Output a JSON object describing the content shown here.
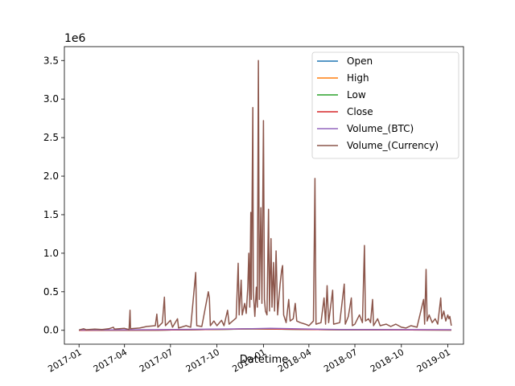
{
  "chart_data": {
    "type": "line",
    "xlabel": "Datetime",
    "ylabel": "",
    "y_offset_text": "1e6",
    "xlim": [
      "2016-12-03",
      "2019-02-01"
    ],
    "ylim": [
      -180000,
      3680000
    ],
    "x_ticks": [
      {
        "date": "2017-01-01",
        "label": "2017-01"
      },
      {
        "date": "2017-04-01",
        "label": "2017-04"
      },
      {
        "date": "2017-07-01",
        "label": "2017-07"
      },
      {
        "date": "2017-10-01",
        "label": "2017-10"
      },
      {
        "date": "2018-01-01",
        "label": "2018-01"
      },
      {
        "date": "2018-04-01",
        "label": "2018-04"
      },
      {
        "date": "2018-07-01",
        "label": "2018-07"
      },
      {
        "date": "2018-10-01",
        "label": "2018-10"
      },
      {
        "date": "2019-01-01",
        "label": "2019-01"
      }
    ],
    "y_ticks": [
      {
        "value": 0,
        "label": "0.0"
      },
      {
        "value": 500000,
        "label": "0.5"
      },
      {
        "value": 1000000,
        "label": "1.0"
      },
      {
        "value": 1500000,
        "label": "1.5"
      },
      {
        "value": 2000000,
        "label": "2.0"
      },
      {
        "value": 2500000,
        "label": "2.5"
      },
      {
        "value": 3000000,
        "label": "3.0"
      },
      {
        "value": 3500000,
        "label": "3.5"
      }
    ],
    "grid": false,
    "legend_position": "top-right",
    "series": [
      {
        "name": "Open",
        "color": "#1f77b4",
        "points": [
          [
            "2017-01-01",
            1000
          ],
          [
            "2017-06-01",
            2500
          ],
          [
            "2017-12-17",
            19000
          ],
          [
            "2018-06-01",
            7500
          ],
          [
            "2019-01-08",
            4000
          ]
        ]
      },
      {
        "name": "High",
        "color": "#ff7f0e",
        "points": [
          [
            "2017-01-01",
            1000
          ],
          [
            "2017-06-01",
            2500
          ],
          [
            "2017-12-17",
            19500
          ],
          [
            "2018-06-01",
            7600
          ],
          [
            "2019-01-08",
            4100
          ]
        ]
      },
      {
        "name": "Low",
        "color": "#2ca02c",
        "points": [
          [
            "2017-01-01",
            950
          ],
          [
            "2017-06-01",
            2400
          ],
          [
            "2017-12-17",
            18500
          ],
          [
            "2018-06-01",
            7400
          ],
          [
            "2019-01-08",
            3900
          ]
        ]
      },
      {
        "name": "Close",
        "color": "#d62728",
        "points": [
          [
            "2017-01-01",
            1000
          ],
          [
            "2017-06-01",
            2500
          ],
          [
            "2017-12-17",
            19000
          ],
          [
            "2018-06-01",
            7500
          ],
          [
            "2019-01-08",
            4000
          ]
        ]
      },
      {
        "name": "Volume_(BTC)",
        "color": "#9467bd",
        "points": [
          [
            "2017-01-01",
            5000
          ],
          [
            "2017-06-01",
            8000
          ],
          [
            "2017-12-10",
            20000
          ],
          [
            "2018-01-15",
            25000
          ],
          [
            "2018-06-01",
            10000
          ],
          [
            "2019-01-08",
            8000
          ]
        ]
      },
      {
        "name": "Volume_(Currency)",
        "color": "#8c564b",
        "points": [
          [
            "2017-01-01",
            5000
          ],
          [
            "2017-01-10",
            20000
          ],
          [
            "2017-01-15",
            8000
          ],
          [
            "2017-02-01",
            15000
          ],
          [
            "2017-02-15",
            10000
          ],
          [
            "2017-03-01",
            20000
          ],
          [
            "2017-03-10",
            40000
          ],
          [
            "2017-03-12",
            15000
          ],
          [
            "2017-04-01",
            25000
          ],
          [
            "2017-04-10",
            10000
          ],
          [
            "2017-04-12",
            260000
          ],
          [
            "2017-04-13",
            20000
          ],
          [
            "2017-05-01",
            30000
          ],
          [
            "2017-05-15",
            50000
          ],
          [
            "2017-06-01",
            60000
          ],
          [
            "2017-06-04",
            210000
          ],
          [
            "2017-06-06",
            40000
          ],
          [
            "2017-06-15",
            100000
          ],
          [
            "2017-06-19",
            430000
          ],
          [
            "2017-06-21",
            60000
          ],
          [
            "2017-07-01",
            130000
          ],
          [
            "2017-07-05",
            40000
          ],
          [
            "2017-07-15",
            150000
          ],
          [
            "2017-07-17",
            30000
          ],
          [
            "2017-08-01",
            60000
          ],
          [
            "2017-08-10",
            40000
          ],
          [
            "2017-08-20",
            750000
          ],
          [
            "2017-08-22",
            60000
          ],
          [
            "2017-09-01",
            50000
          ],
          [
            "2017-09-14",
            500000
          ],
          [
            "2017-09-16",
            420000
          ],
          [
            "2017-09-18",
            60000
          ],
          [
            "2017-09-25",
            120000
          ],
          [
            "2017-10-01",
            60000
          ],
          [
            "2017-10-10",
            130000
          ],
          [
            "2017-10-15",
            60000
          ],
          [
            "2017-10-22",
            260000
          ],
          [
            "2017-10-25",
            80000
          ],
          [
            "2017-11-01",
            120000
          ],
          [
            "2017-11-08",
            160000
          ],
          [
            "2017-11-12",
            870000
          ],
          [
            "2017-11-14",
            200000
          ],
          [
            "2017-11-18",
            650000
          ],
          [
            "2017-11-20",
            200000
          ],
          [
            "2017-11-25",
            350000
          ],
          [
            "2017-11-28",
            220000
          ],
          [
            "2017-12-01",
            550000
          ],
          [
            "2017-12-03",
            1000000
          ],
          [
            "2017-12-05",
            300000
          ],
          [
            "2017-12-07",
            1530000
          ],
          [
            "2017-12-08",
            400000
          ],
          [
            "2017-12-11",
            2890000
          ],
          [
            "2017-12-12",
            500000
          ],
          [
            "2017-12-15",
            180000
          ],
          [
            "2017-12-18",
            560000
          ],
          [
            "2017-12-20",
            300000
          ],
          [
            "2017-12-22",
            3500000
          ],
          [
            "2017-12-24",
            400000
          ],
          [
            "2017-12-27",
            1590000
          ],
          [
            "2017-12-29",
            350000
          ],
          [
            "2018-01-01",
            2720000
          ],
          [
            "2018-01-03",
            400000
          ],
          [
            "2018-01-05",
            250000
          ],
          [
            "2018-01-08",
            200000
          ],
          [
            "2018-01-11",
            1570000
          ],
          [
            "2018-01-13",
            250000
          ],
          [
            "2018-01-16",
            1190000
          ],
          [
            "2018-01-18",
            300000
          ],
          [
            "2018-01-21",
            880000
          ],
          [
            "2018-01-23",
            250000
          ],
          [
            "2018-01-26",
            1030000
          ],
          [
            "2018-01-29",
            200000
          ],
          [
            "2018-02-03",
            600000
          ],
          [
            "2018-02-06",
            780000
          ],
          [
            "2018-02-08",
            840000
          ],
          [
            "2018-02-10",
            200000
          ],
          [
            "2018-02-15",
            100000
          ],
          [
            "2018-02-20",
            400000
          ],
          [
            "2018-02-23",
            120000
          ],
          [
            "2018-03-01",
            150000
          ],
          [
            "2018-03-05",
            350000
          ],
          [
            "2018-03-08",
            120000
          ],
          [
            "2018-03-15",
            100000
          ],
          [
            "2018-03-25",
            80000
          ],
          [
            "2018-04-01",
            60000
          ],
          [
            "2018-04-10",
            120000
          ],
          [
            "2018-04-13",
            1970000
          ],
          [
            "2018-04-15",
            80000
          ],
          [
            "2018-04-25",
            100000
          ],
          [
            "2018-05-01",
            420000
          ],
          [
            "2018-05-04",
            80000
          ],
          [
            "2018-05-07",
            580000
          ],
          [
            "2018-05-10",
            100000
          ],
          [
            "2018-05-18",
            520000
          ],
          [
            "2018-05-20",
            80000
          ],
          [
            "2018-06-01",
            100000
          ],
          [
            "2018-06-10",
            600000
          ],
          [
            "2018-06-12",
            80000
          ],
          [
            "2018-06-18",
            180000
          ],
          [
            "2018-06-24",
            420000
          ],
          [
            "2018-06-26",
            60000
          ],
          [
            "2018-07-01",
            80000
          ],
          [
            "2018-07-10",
            200000
          ],
          [
            "2018-07-16",
            100000
          ],
          [
            "2018-07-20",
            1100000
          ],
          [
            "2018-07-22",
            120000
          ],
          [
            "2018-07-28",
            150000
          ],
          [
            "2018-08-01",
            100000
          ],
          [
            "2018-08-05",
            400000
          ],
          [
            "2018-08-07",
            60000
          ],
          [
            "2018-08-15",
            150000
          ],
          [
            "2018-08-20",
            60000
          ],
          [
            "2018-09-01",
            80000
          ],
          [
            "2018-09-10",
            50000
          ],
          [
            "2018-09-20",
            80000
          ],
          [
            "2018-10-01",
            40000
          ],
          [
            "2018-10-10",
            30000
          ],
          [
            "2018-10-20",
            60000
          ],
          [
            "2018-11-01",
            40000
          ],
          [
            "2018-11-14",
            400000
          ],
          [
            "2018-11-16",
            80000
          ],
          [
            "2018-11-19",
            790000
          ],
          [
            "2018-11-21",
            120000
          ],
          [
            "2018-11-25",
            200000
          ],
          [
            "2018-12-01",
            100000
          ],
          [
            "2018-12-07",
            150000
          ],
          [
            "2018-12-12",
            80000
          ],
          [
            "2018-12-18",
            420000
          ],
          [
            "2018-12-20",
            150000
          ],
          [
            "2018-12-24",
            250000
          ],
          [
            "2018-12-28",
            120000
          ],
          [
            "2019-01-01",
            200000
          ],
          [
            "2019-01-03",
            150000
          ],
          [
            "2019-01-05",
            180000
          ],
          [
            "2019-01-08",
            60000
          ]
        ]
      }
    ]
  }
}
